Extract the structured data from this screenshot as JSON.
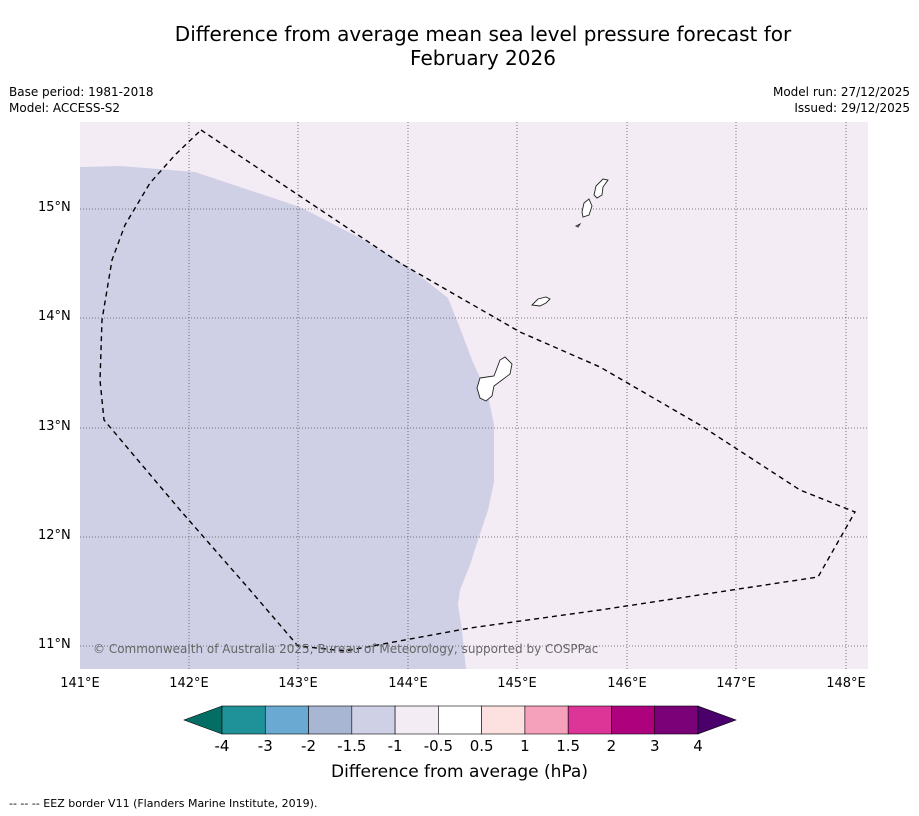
{
  "title_line1": "Difference from average mean sea level pressure forecast for",
  "title_line2": "February 2026",
  "base_period": "Base period: 1981-2018",
  "model": "Model: ACCESS-S2",
  "model_run": "Model run: 27/12/2025",
  "issued": "Issued: 29/12/2025",
  "copyright": "© Commonwealth of Australia 2025, Bureau of Meteorology, supported by COSPPac",
  "lat_ticks": [
    "15°N",
    "14°N",
    "13°N",
    "12°N",
    "11°N"
  ],
  "lon_ticks": [
    "141°E",
    "142°E",
    "143°E",
    "144°E",
    "145°E",
    "146°E",
    "147°E",
    "148°E"
  ],
  "colorbar": {
    "title": "Difference from average (hPa)",
    "labels": [
      "-4",
      "-3",
      "-2",
      "-1.5",
      "-1",
      "-0.5",
      "0.5",
      "1",
      "1.5",
      "2",
      "3",
      "4"
    ],
    "colors": [
      "#056e64",
      "#1f9299",
      "#6aaad2",
      "#a8b6d4",
      "#cfd0e6",
      "#f4ecf5",
      "#ffffff",
      "#fde0e0",
      "#f6a1bc",
      "#dd3497",
      "#ae017e",
      "#7a0177",
      "#49006a"
    ]
  },
  "map_colors": {
    "negative_fill": "#cfd0e6",
    "neutral_fill": "#f4ecf5"
  },
  "footer": "--  --  -- EEZ border V11 (Flanders Marine Institute, 2019)."
}
